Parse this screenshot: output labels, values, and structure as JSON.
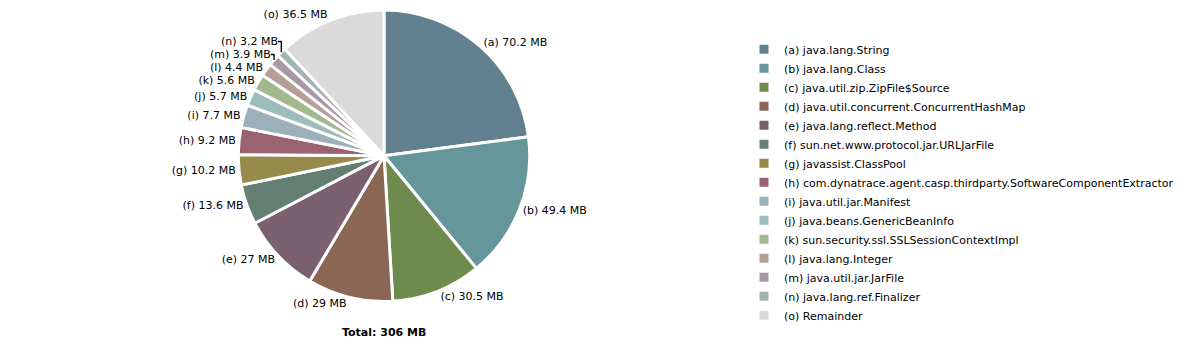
{
  "chart_data": {
    "type": "pie",
    "categories": [
      "(a) java.lang.String",
      "(b) java.lang.Class",
      "(c) java.util.zip.ZipFile$Source",
      "(d) java.util.concurrent.ConcurrentHashMap",
      "(e) java.lang.reflect.Method",
      "(f) sun.net.www.protocol.jar.URLJarFile",
      "(g) javassist.ClassPool",
      "(h) com.dynatrace.agent.casp.thirdparty.SoftwareComponentExtractor",
      "(i) java.util.jar.Manifest",
      "(j) java.beans.GenericBeanInfo",
      "(k) sun.security.ssl.SSLSessionContextImpl",
      "(l) java.lang.Integer",
      "(m) java.util.jar.JarFile",
      "(n) java.lang.ref.Finalizer",
      "(o) Remainder"
    ],
    "values": [
      70.2,
      49.4,
      30.5,
      29,
      27,
      13.6,
      10.2,
      9.2,
      7.7,
      5.7,
      5.6,
      4.4,
      3.9,
      3.2,
      36.5
    ],
    "value_labels": [
      "(a) 70.2 MB",
      "(b) 49.4 MB",
      "(c) 30.5 MB",
      "(d) 29 MB",
      "(e) 27 MB",
      "(f) 13.6 MB",
      "(g) 10.2 MB",
      "(h) 9.2 MB",
      "(i) 7.7 MB",
      "(j) 5.7 MB",
      "(k) 5.6 MB",
      "(l) 4.4 MB",
      "(m) 3.9 MB",
      "(n) 3.2 MB",
      "(o) 36.5 MB"
    ],
    "colors": [
      "#62808f",
      "#64969a",
      "#6e8b4d",
      "#8a6755",
      "#7b6070",
      "#637e72",
      "#978a4a",
      "#9b6270",
      "#9cb0bb",
      "#9dbdbc",
      "#a2b88f",
      "#b59e95",
      "#a898a6",
      "#a3b3ae",
      "#dadada"
    ],
    "data_labels": true,
    "legend": "right",
    "annotations": [
      "Total: 306 MB"
    ]
  }
}
